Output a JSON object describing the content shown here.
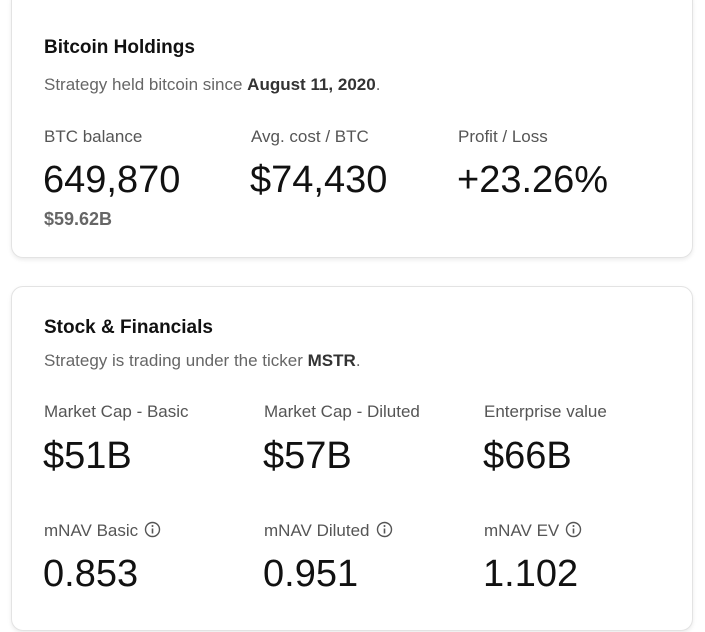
{
  "holdings": {
    "title": "Bitcoin Holdings",
    "subtitle": {
      "text": "Strategy held bitcoin since ",
      "emphasis": "August 11, 2020",
      "suffix": "."
    },
    "stats": [
      {
        "label": "BTC balance",
        "value": "649,870",
        "sub": "$59.62B"
      },
      {
        "label": "Avg. cost / BTC",
        "value": "$74,430"
      },
      {
        "label": "Profit / Loss",
        "value": "+23.26%"
      }
    ]
  },
  "financials": {
    "title": "Stock & Financials",
    "subtitle": {
      "text": "Strategy is trading under the ticker ",
      "emphasis": "MSTR",
      "suffix": "."
    },
    "stats": [
      {
        "label": "Market Cap - Basic",
        "value": "$51B"
      },
      {
        "label": "Market Cap - Diluted",
        "value": "$57B"
      },
      {
        "label": "Enterprise value",
        "value": "$66B"
      },
      {
        "label": "mNAV Basic",
        "value": "0.853"
      },
      {
        "label": "mNAV Diluted",
        "value": "0.951"
      },
      {
        "label": "mNAV EV",
        "value": "1.102"
      }
    ]
  }
}
